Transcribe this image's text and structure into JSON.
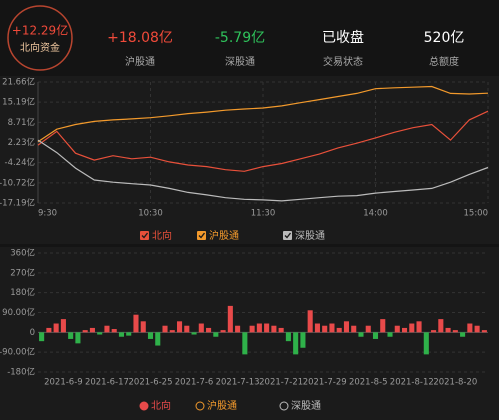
{
  "header": {
    "main": {
      "value": "+12.29亿",
      "label": "北向资金",
      "color": "#f04a3a"
    },
    "stats": [
      {
        "value": "+18.08亿",
        "label": "沪股通",
        "color": "#f04a3a"
      },
      {
        "value": "-5.79亿",
        "label": "深股通",
        "color": "#2fc25b"
      },
      {
        "value": "已收盘",
        "label": "交易状态",
        "color": "#ffffff"
      },
      {
        "value": "520亿",
        "label": "总额度",
        "color": "#ffffff"
      }
    ]
  },
  "chart_data": [
    {
      "type": "line",
      "x": [
        0,
        10,
        20,
        30,
        40,
        50,
        60,
        70,
        80,
        90,
        100,
        110,
        120,
        130,
        140,
        150,
        160,
        170,
        180,
        190,
        200,
        210,
        220,
        230,
        240
      ],
      "xlim": [
        0,
        240
      ],
      "xticks": [
        {
          "value": 0,
          "label": "9:30"
        },
        {
          "value": 60,
          "label": "10:30"
        },
        {
          "value": 120,
          "label": "11:30"
        },
        {
          "value": 180,
          "label": "14:00"
        },
        {
          "value": 240,
          "label": "15:00"
        }
      ],
      "ylim": [
        -17.19,
        21.66
      ],
      "yticks": [
        {
          "value": 21.66,
          "label": "21.66亿"
        },
        {
          "value": 15.19,
          "label": "15.19亿"
        },
        {
          "value": 8.71,
          "label": "8.71亿"
        },
        {
          "value": 2.23,
          "label": "2.23亿"
        },
        {
          "value": -4.24,
          "label": "-4.24亿"
        },
        {
          "value": -10.72,
          "label": "-10.72亿"
        },
        {
          "value": -17.19,
          "label": "-17.19亿"
        }
      ],
      "grid": true,
      "series": [
        {
          "name": "北向",
          "color": "#e8503a",
          "values": [
            1.4,
            5.8,
            -1.2,
            -3.4,
            -2.0,
            -3.0,
            -2.5,
            -4.0,
            -5.0,
            -5.5,
            -6.5,
            -7.0,
            -5.5,
            -4.5,
            -3.0,
            -1.5,
            0.5,
            2.0,
            3.7,
            5.5,
            7.0,
            8.0,
            3.0,
            9.5,
            12.29
          ]
        },
        {
          "name": "沪股通",
          "color": "#f39a2c",
          "values": [
            2.5,
            6.5,
            8.0,
            9.0,
            9.5,
            9.8,
            10.2,
            10.8,
            11.5,
            12.0,
            12.6,
            13.0,
            13.3,
            14.0,
            15.0,
            16.0,
            17.0,
            18.0,
            19.5,
            19.8,
            20.0,
            20.2,
            18.0,
            17.8,
            18.08
          ]
        },
        {
          "name": "深股通",
          "color": "#bbbbbb",
          "values": [
            3.0,
            -1.0,
            -6.0,
            -9.8,
            -10.5,
            -11.0,
            -11.4,
            -12.5,
            -13.8,
            -14.6,
            -15.5,
            -16.0,
            -16.2,
            -16.5,
            -16.0,
            -15.5,
            -15.0,
            -14.8,
            -14.0,
            -13.5,
            -13.0,
            -12.5,
            -10.5,
            -8.0,
            -5.79
          ]
        }
      ]
    },
    {
      "type": "bar",
      "categories": [
        null,
        null,
        null,
        "2021-6-9",
        null,
        null,
        null,
        null,
        null,
        "2021-6-17",
        null,
        null,
        null,
        null,
        null,
        "2021-6-25",
        null,
        null,
        null,
        null,
        null,
        "2021-7-6",
        null,
        null,
        null,
        null,
        null,
        "2021-7-13",
        null,
        null,
        null,
        null,
        null,
        "2021-7-21",
        null,
        null,
        null,
        null,
        null,
        "2021-7-29",
        null,
        null,
        null,
        null,
        null,
        "2021-8-5",
        null,
        null,
        null,
        null,
        null,
        "2021-8-12",
        null,
        null,
        null,
        null,
        null,
        "2021-8-20",
        null,
        null,
        null,
        null
      ],
      "ylim": [
        -180,
        360
      ],
      "yticks": [
        {
          "value": 360,
          "label": "360亿"
        },
        {
          "value": 270,
          "label": "270亿"
        },
        {
          "value": 180,
          "label": "180亿"
        },
        {
          "value": 90,
          "label": "90.00亿"
        },
        0,
        {
          "value": -90,
          "label": "-90.00亿"
        },
        {
          "value": -180,
          "label": "-180亿"
        }
      ],
      "grid": true,
      "series": [
        {
          "name": "北向",
          "color": "#e84a4a",
          "negative_color": "#2fb14a",
          "values": [
            -40,
            20,
            40,
            60,
            -30,
            -50,
            10,
            20,
            -10,
            30,
            15,
            -20,
            -15,
            80,
            50,
            -30,
            -60,
            30,
            10,
            50,
            30,
            -10,
            40,
            20,
            -20,
            10,
            120,
            30,
            -100,
            30,
            40,
            40,
            30,
            20,
            -40,
            -100,
            -70,
            100,
            40,
            30,
            40,
            20,
            50,
            30,
            -20,
            30,
            -30,
            60,
            -20,
            30,
            20,
            40,
            50,
            -100,
            10,
            60,
            20,
            10,
            -20,
            40,
            30,
            10
          ]
        }
      ],
      "legend": [
        {
          "name": "北向",
          "color": "#e84a4a",
          "active": true
        },
        {
          "name": "沪股通",
          "color": "#f39a2c",
          "active": false
        },
        {
          "name": "深股通",
          "color": "#bbbbbb",
          "active": false
        }
      ]
    }
  ]
}
